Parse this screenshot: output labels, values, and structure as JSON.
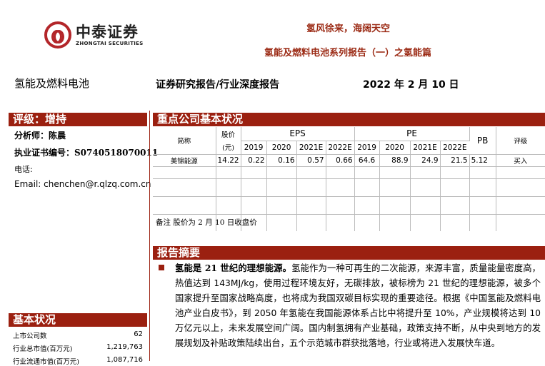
{
  "logo": {
    "cn": "中泰证券",
    "en": "ZHONGTAI SECURITIES"
  },
  "title": {
    "line1": "氢风徐来，海阔天空",
    "line2": "氢能及燃料电池系列报告（一）之氢能篇"
  },
  "header": {
    "industry": "氢能及燃料电池",
    "report_type": "证券研究报告/行业深度报告",
    "date": "2022 年 2 月 10 日"
  },
  "left": {
    "rating": "评级：增持",
    "analyst": "分析师：陈晨",
    "license": "执业证书编号：S0740518070011",
    "phone": "电话:",
    "email": "Email:  chenchen@r.qlzq.com.cn",
    "basic_title": "基本状况",
    "stats": [
      {
        "label": "上市公司数",
        "value": "62"
      },
      {
        "label": "行业总市值(百万元)",
        "value": "1,219,763"
      },
      {
        "label": "行业流通市值(百万元)",
        "value": "1,087,716"
      }
    ]
  },
  "table": {
    "title": "重点公司基本状况",
    "h_name": "简称",
    "h_price1": "股价",
    "h_price2": "(元)",
    "h_eps": "EPS",
    "h_pe": "PE",
    "h_pb": "PB",
    "h_rating": "评级",
    "years": [
      "2019",
      "2020",
      "2021E",
      "2022E"
    ],
    "rows": [
      {
        "name": "美锦能源",
        "price": "14.22",
        "eps": [
          "0.22",
          "0.16",
          "0.57",
          "0.66"
        ],
        "pe": [
          "64.6",
          "88.9",
          "24.9",
          "21.5"
        ],
        "pb": "5.12",
        "rating": "买入"
      }
    ],
    "note": "备注  股价为 2 月 10 日收盘价"
  },
  "summary": {
    "title": "报告摘要",
    "lead": "氢能是 21 世纪的理想能源。",
    "body": "氢能作为一种可再生的二次能源，来源丰富，质量能量密度高，热值达到 143MJ/kg，使用过程环境友好，无碳排放，被标榜为 21 世纪的理想能源，被多个国家提升至国家战略高度，也将成为我国双碳目标实现的重要途径。根据《中国氢能及燃料电池产业白皮书》，到 2050 年氢能在我国能源体系占比中将提升至 10%，产业规模将达到 10 万亿元以上，未来发展空间广阔。国内制氢拥有产业基础，政策支持不断，从中央到地方的发展规划及补贴政策陆续出台，五个示范城市群获批落地，行业或将进入发展快车道。"
  },
  "colors": {
    "accent": "#9b2010"
  }
}
